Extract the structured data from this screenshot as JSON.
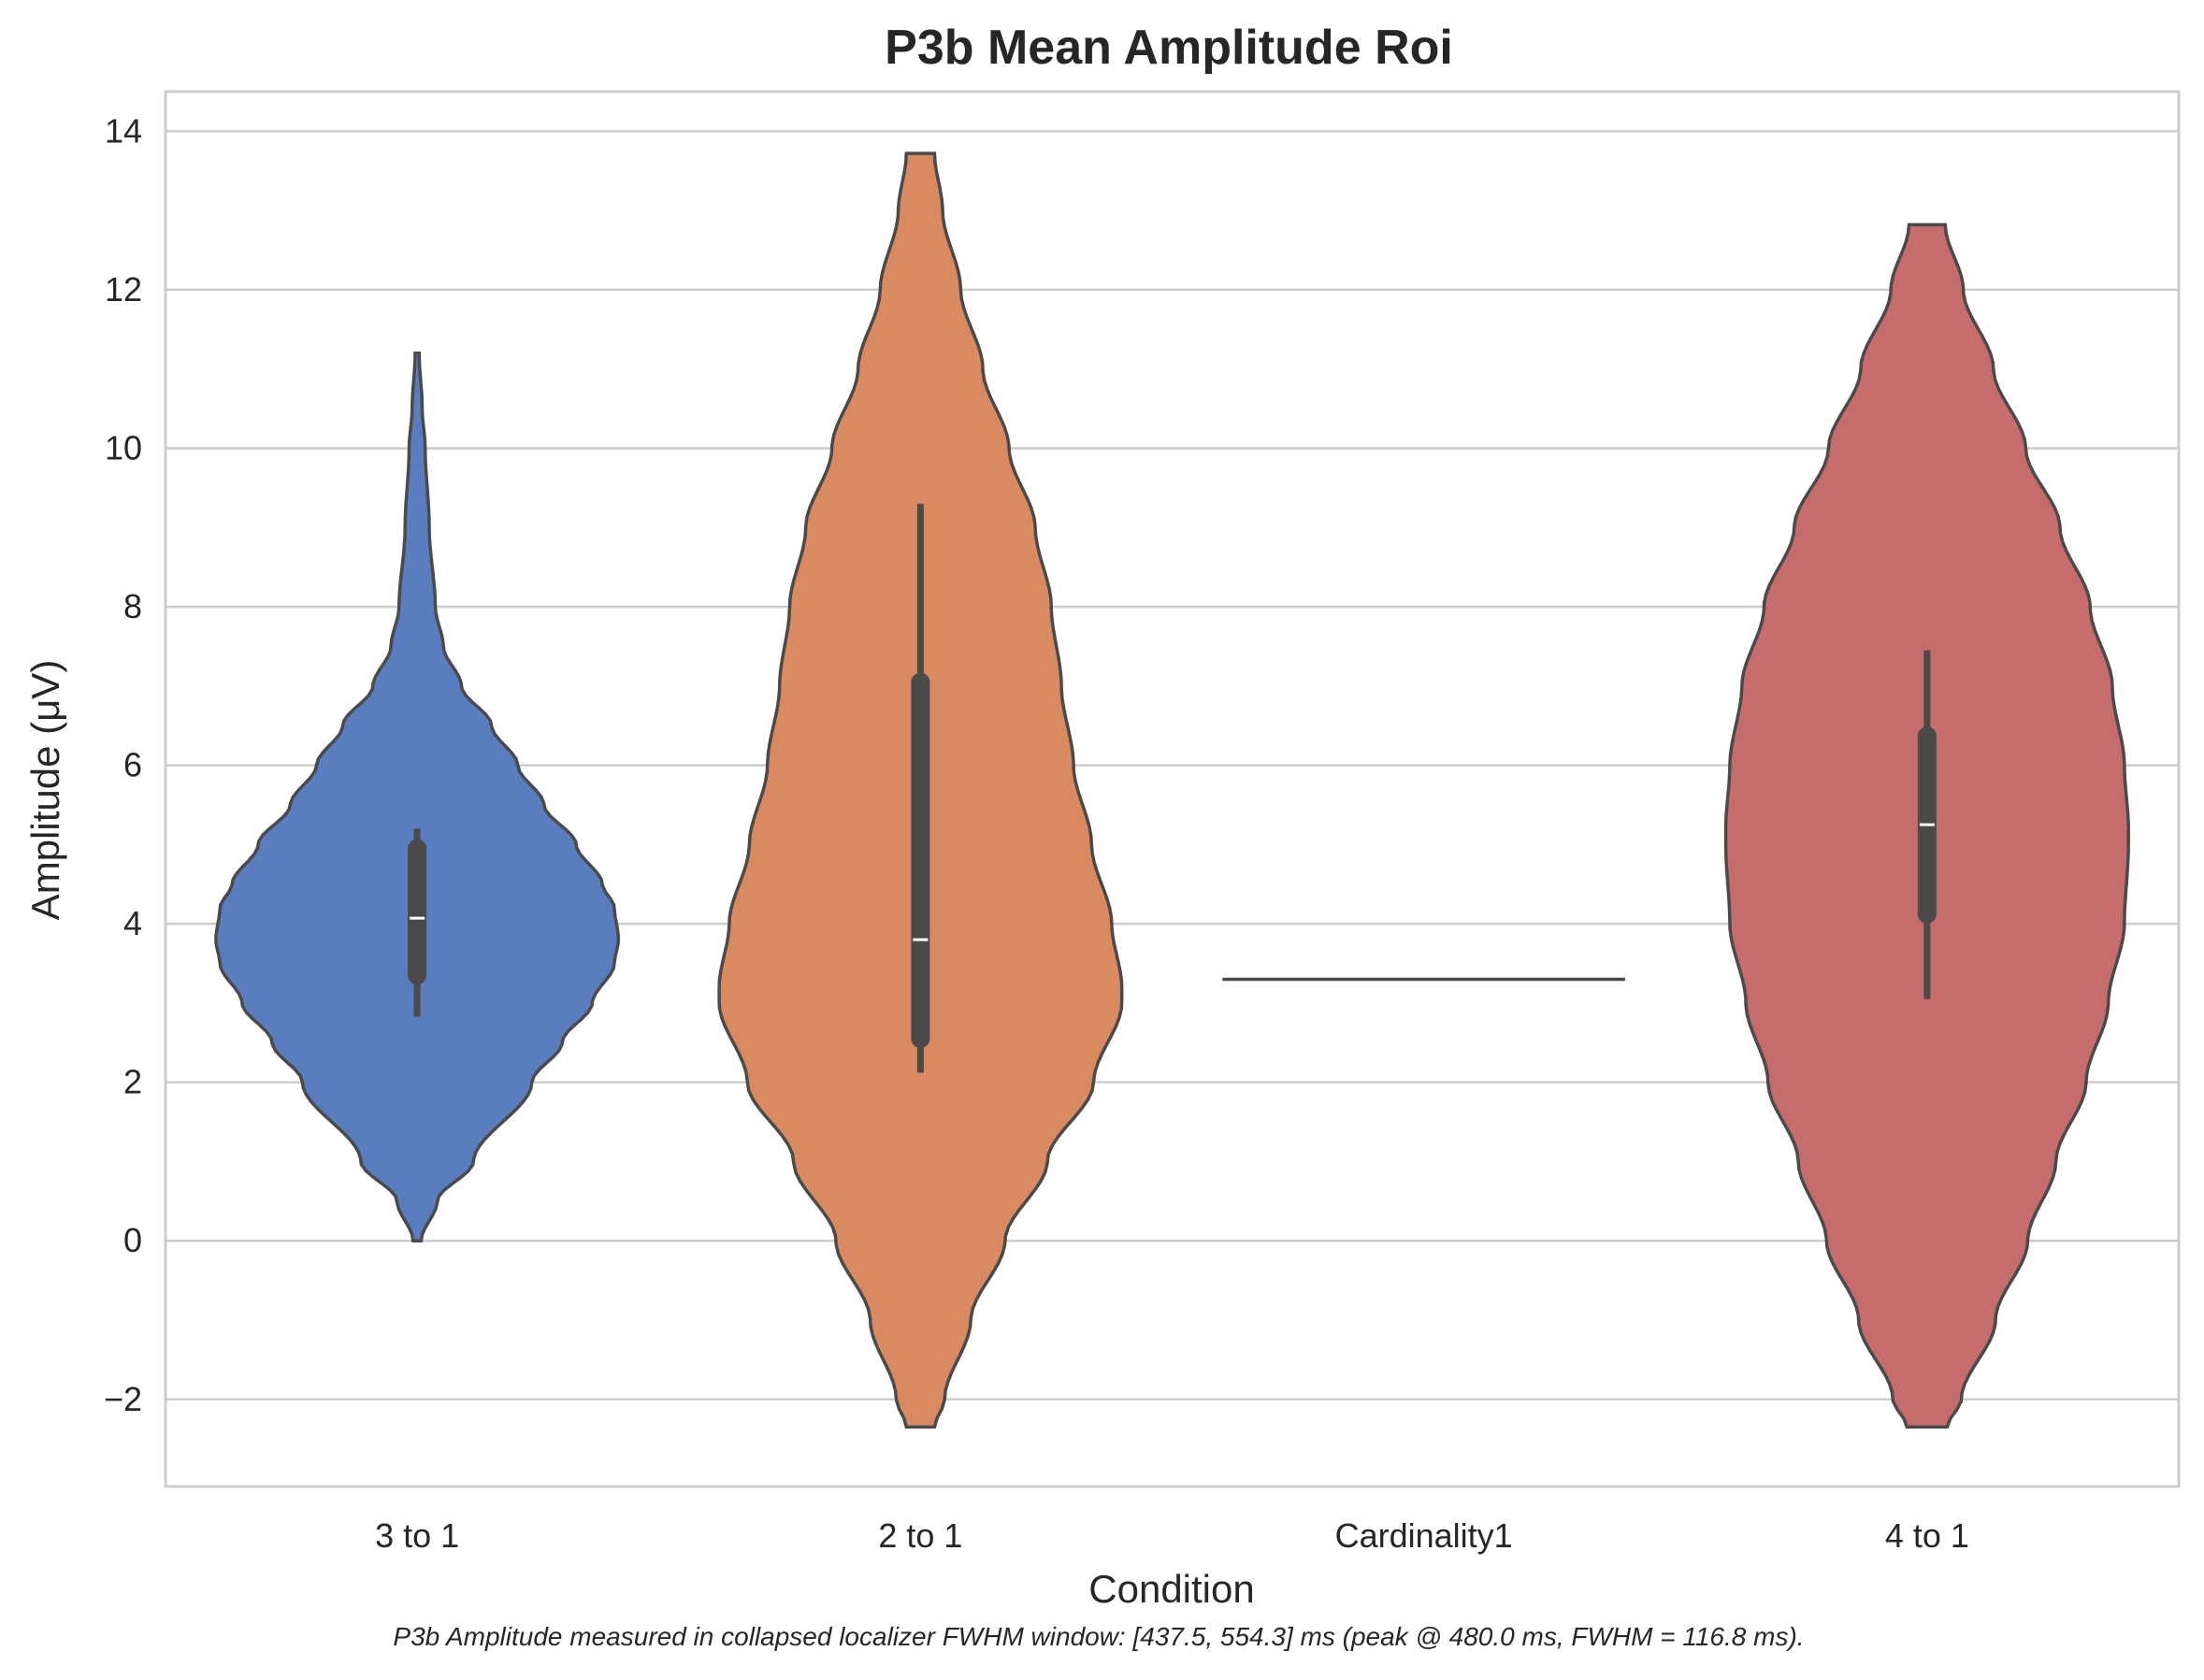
{
  "chart_data": {
    "type": "violin",
    "title": "P3b Mean Amplitude Roi",
    "xlabel": "Condition",
    "ylabel": "Amplitude (μV)",
    "caption": "P3b Amplitude measured in collapsed localizer FWHM window: [437.5, 554.3] ms (peak @ 480.0 ms, FWHM = 116.8 ms).",
    "ylim": [
      -3.1,
      14.5
    ],
    "yticks": [
      -2,
      0,
      2,
      4,
      6,
      8,
      10,
      12,
      14
    ],
    "ytick_labels": [
      "−2",
      "0",
      "2",
      "4",
      "6",
      "8",
      "10",
      "12",
      "14"
    ],
    "grid": "horizontal",
    "categories": [
      "3 to 1",
      "2 to 1",
      "Cardinality1",
      "4 to 1"
    ],
    "violins": [
      {
        "category": "3 to 1",
        "color": "#5a7dbf",
        "min": 0.0,
        "max": 11.2,
        "density": [
          [
            0.0,
            0.02
          ],
          [
            0.5,
            0.1
          ],
          [
            1.0,
            0.28
          ],
          [
            2.0,
            0.57
          ],
          [
            2.5,
            0.72
          ],
          [
            3.0,
            0.87
          ],
          [
            3.5,
            0.98
          ],
          [
            3.8,
            1.0
          ],
          [
            4.2,
            0.98
          ],
          [
            4.5,
            0.92
          ],
          [
            5.0,
            0.79
          ],
          [
            5.5,
            0.63
          ],
          [
            6.0,
            0.5
          ],
          [
            6.5,
            0.37
          ],
          [
            7.0,
            0.22
          ],
          [
            7.5,
            0.13
          ],
          [
            8.0,
            0.09
          ],
          [
            9.0,
            0.06
          ],
          [
            10.0,
            0.04
          ],
          [
            10.5,
            0.025
          ],
          [
            11.2,
            0.01
          ]
        ],
        "box": {
          "q1": 3.35,
          "median": 4.07,
          "q3": 4.95,
          "whisker_low": 2.83,
          "whisker_high": 5.2
        }
      },
      {
        "category": "2 to 1",
        "color": "#d98a61",
        "min": -2.35,
        "max": 13.72,
        "density": [
          [
            -2.35,
            0.07
          ],
          [
            -2.0,
            0.12
          ],
          [
            -1.0,
            0.25
          ],
          [
            0.0,
            0.42
          ],
          [
            1.0,
            0.63
          ],
          [
            2.0,
            0.86
          ],
          [
            3.0,
            1.0
          ],
          [
            3.2,
            1.0
          ],
          [
            4.0,
            0.95
          ],
          [
            5.0,
            0.85
          ],
          [
            6.0,
            0.76
          ],
          [
            7.0,
            0.7
          ],
          [
            8.0,
            0.65
          ],
          [
            9.0,
            0.57
          ],
          [
            10.0,
            0.44
          ],
          [
            11.0,
            0.31
          ],
          [
            12.0,
            0.2
          ],
          [
            13.0,
            0.11
          ],
          [
            13.72,
            0.07
          ]
        ],
        "box": {
          "q1": 2.55,
          "median": 3.8,
          "q3": 7.05,
          "whisker_low": 2.12,
          "whisker_high": 9.3
        }
      },
      {
        "category": "Cardinality1",
        "color": "#5fa570",
        "min": 3.3,
        "max": 3.3,
        "value": 3.3
      },
      {
        "category": "4 to 1",
        "color": "#c66c6c",
        "min": -2.35,
        "max": 12.82,
        "density": [
          [
            -2.35,
            0.1
          ],
          [
            -2.0,
            0.17
          ],
          [
            -1.0,
            0.34
          ],
          [
            0.0,
            0.5
          ],
          [
            1.0,
            0.64
          ],
          [
            2.0,
            0.79
          ],
          [
            3.0,
            0.9
          ],
          [
            4.0,
            0.98
          ],
          [
            5.0,
            1.0
          ],
          [
            5.2,
            1.0
          ],
          [
            6.0,
            0.98
          ],
          [
            7.0,
            0.92
          ],
          [
            8.0,
            0.81
          ],
          [
            9.0,
            0.66
          ],
          [
            10.0,
            0.49
          ],
          [
            11.0,
            0.33
          ],
          [
            12.0,
            0.18
          ],
          [
            12.82,
            0.09
          ]
        ],
        "box": {
          "q1": 4.12,
          "median": 5.25,
          "q3": 6.37,
          "whisker_low": 3.05,
          "whisker_high": 7.45
        }
      }
    ]
  }
}
